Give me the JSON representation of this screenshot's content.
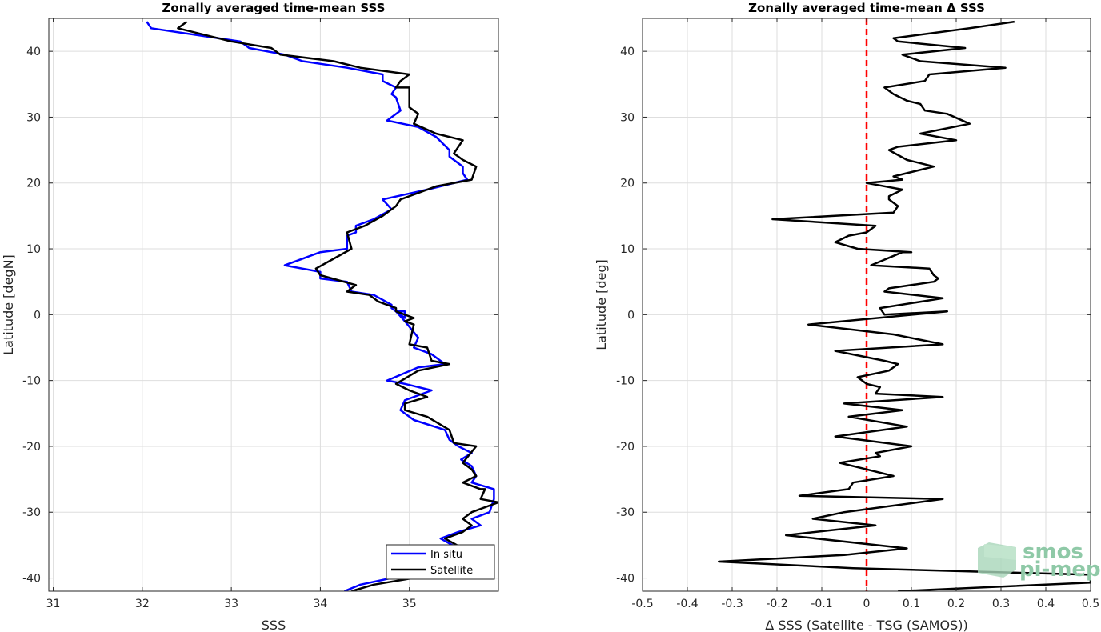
{
  "chart_data": [
    {
      "type": "line",
      "title": "Zonally averaged time-mean SSS",
      "xlabel": "SSS",
      "ylabel": "Latitude [degN]",
      "xlim": [
        30.95,
        36.0
      ],
      "ylim": [
        -42,
        45
      ],
      "xticks": [
        31,
        32,
        33,
        34,
        35
      ],
      "yticks": [
        -40,
        -30,
        -20,
        -10,
        0,
        10,
        20,
        30,
        40
      ],
      "xtick_labels": [
        "31",
        "32",
        "33",
        "34",
        "35"
      ],
      "ytick_labels": [
        "-40",
        "-30",
        "-20",
        "-10",
        "0",
        "10",
        "20",
        "30",
        "40"
      ],
      "grid": true,
      "legend": "bottom-right",
      "series": [
        {
          "name": "In situ",
          "color": "#0000ff",
          "points": [
            [
              34.27,
              -42
            ],
            [
              34.45,
              -41
            ],
            [
              34.8,
              -40
            ],
            [
              35.0,
              -39.5
            ],
            [
              35.5,
              -37.5
            ],
            [
              35.55,
              -35.5
            ],
            [
              35.35,
              -34
            ],
            [
              35.55,
              -33
            ],
            [
              35.8,
              -32
            ],
            [
              35.7,
              -31
            ],
            [
              35.9,
              -30
            ],
            [
              35.95,
              -28
            ],
            [
              35.95,
              -26.5
            ],
            [
              35.7,
              -25.5
            ],
            [
              35.75,
              -24.5
            ],
            [
              35.7,
              -23
            ],
            [
              35.58,
              -22
            ],
            [
              35.7,
              -21
            ],
            [
              35.55,
              -20
            ],
            [
              35.45,
              -19
            ],
            [
              35.4,
              -17.5
            ],
            [
              35.05,
              -16
            ],
            [
              34.9,
              -14.5
            ],
            [
              34.95,
              -13
            ],
            [
              35.25,
              -11.5
            ],
            [
              34.95,
              -10.5
            ],
            [
              34.75,
              -10
            ],
            [
              35.1,
              -8
            ],
            [
              35.4,
              -7.5
            ],
            [
              35.25,
              -6
            ],
            [
              35.05,
              -5
            ],
            [
              35.1,
              -3.5
            ],
            [
              34.95,
              -1
            ],
            [
              34.85,
              0.5
            ],
            [
              34.95,
              0.5
            ],
            [
              34.95,
              -0.5
            ],
            [
              34.8,
              1
            ],
            [
              34.8,
              1.5
            ],
            [
              34.6,
              3
            ],
            [
              34.35,
              3.5
            ],
            [
              34.3,
              5
            ],
            [
              34.0,
              5.5
            ],
            [
              34.0,
              6.5
            ],
            [
              33.6,
              7.5
            ],
            [
              34.0,
              9.5
            ],
            [
              34.3,
              10
            ],
            [
              34.3,
              12
            ],
            [
              34.4,
              12.5
            ],
            [
              34.4,
              13.5
            ],
            [
              34.6,
              14.5
            ],
            [
              34.8,
              16
            ],
            [
              34.7,
              17.5
            ],
            [
              35.2,
              19
            ],
            [
              35.65,
              20.5
            ],
            [
              35.6,
              21.5
            ],
            [
              35.6,
              22.5
            ],
            [
              35.45,
              24
            ],
            [
              35.45,
              25
            ],
            [
              35.3,
              27
            ],
            [
              35.1,
              28.5
            ],
            [
              34.75,
              29.5
            ],
            [
              34.9,
              31
            ],
            [
              34.85,
              33
            ],
            [
              34.8,
              33.5
            ],
            [
              34.85,
              34.5
            ],
            [
              34.7,
              35.5
            ],
            [
              34.7,
              36.5
            ],
            [
              34.3,
              37.5
            ],
            [
              33.8,
              38.5
            ],
            [
              33.6,
              39.5
            ],
            [
              33.2,
              40.5
            ],
            [
              33.1,
              41.5
            ],
            [
              32.1,
              43.5
            ],
            [
              32.05,
              44.5
            ]
          ]
        },
        {
          "name": "Satellite",
          "color": "#000000",
          "points": [
            [
              34.35,
              -42
            ],
            [
              34.6,
              -41
            ],
            [
              35.05,
              -40
            ],
            [
              35.3,
              -39.5
            ],
            [
              35.5,
              -37.5
            ],
            [
              35.6,
              -35.5
            ],
            [
              35.4,
              -34
            ],
            [
              35.6,
              -33
            ],
            [
              35.7,
              -32
            ],
            [
              35.6,
              -31
            ],
            [
              35.7,
              -30
            ],
            [
              36.0,
              -28.5
            ],
            [
              35.8,
              -28
            ],
            [
              35.85,
              -26.5
            ],
            [
              35.8,
              -26.5
            ],
            [
              35.6,
              -25.5
            ],
            [
              35.75,
              -24.5
            ],
            [
              35.7,
              -23.5
            ],
            [
              35.6,
              -22.5
            ],
            [
              35.75,
              -20
            ],
            [
              35.5,
              -19.5
            ],
            [
              35.45,
              -17.5
            ],
            [
              35.2,
              -15.5
            ],
            [
              34.95,
              -14.5
            ],
            [
              34.95,
              -13.5
            ],
            [
              35.2,
              -12.5
            ],
            [
              35.0,
              -11.5
            ],
            [
              34.85,
              -10.5
            ],
            [
              35.1,
              -8.5
            ],
            [
              35.45,
              -7.5
            ],
            [
              35.25,
              -7
            ],
            [
              35.2,
              -5
            ],
            [
              35.0,
              -4.5
            ],
            [
              35.05,
              -1.5
            ],
            [
              34.95,
              -1
            ],
            [
              35.05,
              -0.5
            ],
            [
              34.85,
              0.5
            ],
            [
              34.85,
              1
            ],
            [
              34.65,
              2
            ],
            [
              34.55,
              3
            ],
            [
              34.3,
              3.5
            ],
            [
              34.4,
              4.5
            ],
            [
              34.0,
              6
            ],
            [
              33.95,
              7
            ],
            [
              34.15,
              8.5
            ],
            [
              34.35,
              10
            ],
            [
              34.3,
              12.5
            ],
            [
              34.5,
              13.5
            ],
            [
              34.7,
              15
            ],
            [
              34.85,
              16.5
            ],
            [
              34.9,
              17.5
            ],
            [
              35.3,
              19.5
            ],
            [
              35.7,
              20.5
            ],
            [
              35.75,
              22.5
            ],
            [
              35.6,
              23.5
            ],
            [
              35.5,
              24.5
            ],
            [
              35.6,
              26.5
            ],
            [
              35.3,
              27.5
            ],
            [
              35.05,
              29
            ],
            [
              35.1,
              30.5
            ],
            [
              35.0,
              31.5
            ],
            [
              35.0,
              33
            ],
            [
              35.0,
              34.5
            ],
            [
              34.85,
              34.5
            ],
            [
              34.9,
              35.5
            ],
            [
              35.0,
              36.5
            ],
            [
              34.45,
              37.5
            ],
            [
              34.15,
              38.5
            ],
            [
              33.55,
              39.5
            ],
            [
              33.45,
              40.5
            ],
            [
              33.0,
              41.5
            ],
            [
              32.4,
              43.5
            ],
            [
              32.5,
              44.5
            ]
          ]
        }
      ]
    },
    {
      "type": "line",
      "title": "Zonally averaged time-mean Δ SSS",
      "xlabel": "Δ SSS (Satellite - TSG (SAMOS))",
      "ylabel": "Latitude [deg]",
      "xlim": [
        -0.5,
        0.5
      ],
      "ylim": [
        -42,
        45
      ],
      "xticks": [
        -0.5,
        -0.4,
        -0.3,
        -0.2,
        -0.1,
        0,
        0.1,
        0.2,
        0.3,
        0.4,
        0.5
      ],
      "yticks": [
        -40,
        -30,
        -20,
        -10,
        0,
        10,
        20,
        30,
        40
      ],
      "xtick_labels": [
        "-0.5",
        "-0.4",
        "-0.3",
        "-0.2",
        "-0.1",
        "0",
        "0.1",
        "0.2",
        "0.3",
        "0.4",
        "0.5"
      ],
      "ytick_labels": [
        "-40",
        "-30",
        "-20",
        "-10",
        "0",
        "10",
        "20",
        "30",
        "40"
      ],
      "grid": true,
      "reference_line": {
        "x": 0,
        "color": "#ff0000",
        "style": "dashed"
      },
      "series": [
        {
          "color": "#000000",
          "points": [
            [
              0.07,
              -42
            ],
            [
              0.5,
              -40.7
            ],
            [
              0.5,
              -40
            ],
            [
              0.5,
              -39.5
            ],
            [
              -0.03,
              -38.5
            ],
            [
              -0.33,
              -37.5
            ],
            [
              -0.05,
              -36.5
            ],
            [
              0.09,
              -35.5
            ],
            [
              -0.18,
              -33.5
            ],
            [
              0.02,
              -32
            ],
            [
              -0.12,
              -31
            ],
            [
              -0.05,
              -30
            ],
            [
              0.17,
              -28
            ],
            [
              -0.15,
              -27.5
            ],
            [
              -0.04,
              -26.5
            ],
            [
              -0.03,
              -25.5
            ],
            [
              0.06,
              -24.5
            ],
            [
              0.0,
              -23.5
            ],
            [
              -0.06,
              -22.5
            ],
            [
              0.03,
              -21.5
            ],
            [
              0.02,
              -21
            ],
            [
              0.1,
              -20
            ],
            [
              -0.07,
              -18.5
            ],
            [
              0.09,
              -17
            ],
            [
              -0.04,
              -15.5
            ],
            [
              0.08,
              -14.5
            ],
            [
              -0.05,
              -13.5
            ],
            [
              0.17,
              -12.5
            ],
            [
              0.02,
              -12
            ],
            [
              0.03,
              -11
            ],
            [
              0.0,
              -10.5
            ],
            [
              -0.02,
              -9.5
            ],
            [
              0.05,
              -8.5
            ],
            [
              0.07,
              -7.5
            ],
            [
              0.04,
              -7
            ],
            [
              -0.07,
              -5.5
            ],
            [
              0.17,
              -4.5
            ],
            [
              0.06,
              -3
            ],
            [
              -0.13,
              -1.5
            ],
            [
              0.18,
              0.5
            ],
            [
              0.04,
              0
            ],
            [
              0.03,
              1
            ],
            [
              0.17,
              2.5
            ],
            [
              0.04,
              3.5
            ],
            [
              0.05,
              4
            ],
            [
              0.15,
              5
            ],
            [
              0.16,
              5.5
            ],
            [
              0.15,
              6
            ],
            [
              0.14,
              7
            ],
            [
              0.01,
              7.5
            ],
            [
              0.08,
              9.5
            ],
            [
              0.1,
              9.5
            ],
            [
              -0.02,
              10
            ],
            [
              -0.07,
              11
            ],
            [
              -0.04,
              12
            ],
            [
              0.0,
              12.5
            ],
            [
              0.02,
              13.5
            ],
            [
              -0.21,
              14.5
            ],
            [
              0.06,
              15.5
            ],
            [
              0.07,
              16.5
            ],
            [
              0.05,
              17.5
            ],
            [
              0.05,
              18
            ],
            [
              0.08,
              19
            ],
            [
              0.0,
              20
            ],
            [
              0.08,
              20.5
            ],
            [
              0.06,
              21
            ],
            [
              0.15,
              22.5
            ],
            [
              0.09,
              23.5
            ],
            [
              0.05,
              25
            ],
            [
              0.07,
              25.5
            ],
            [
              0.2,
              26.5
            ],
            [
              0.12,
              27.5
            ],
            [
              0.23,
              29
            ],
            [
              0.18,
              30.5
            ],
            [
              0.13,
              31
            ],
            [
              0.12,
              32
            ],
            [
              0.09,
              32.5
            ],
            [
              0.06,
              33.5
            ],
            [
              0.04,
              34.5
            ],
            [
              0.13,
              35.5
            ],
            [
              0.14,
              36.5
            ],
            [
              0.31,
              37.5
            ],
            [
              0.12,
              38.5
            ],
            [
              0.08,
              39.5
            ],
            [
              0.22,
              40.5
            ],
            [
              0.07,
              41.5
            ],
            [
              0.06,
              42
            ],
            [
              0.23,
              43.5
            ],
            [
              0.33,
              44.5
            ]
          ]
        }
      ]
    }
  ],
  "legend": {
    "items": [
      {
        "label": "In situ",
        "color": "#0000ff"
      },
      {
        "label": "Satellite",
        "color": "#000000"
      }
    ]
  },
  "logo": {
    "line1": "smos",
    "line2": "pi-mep",
    "color": "#8fc9a7"
  }
}
